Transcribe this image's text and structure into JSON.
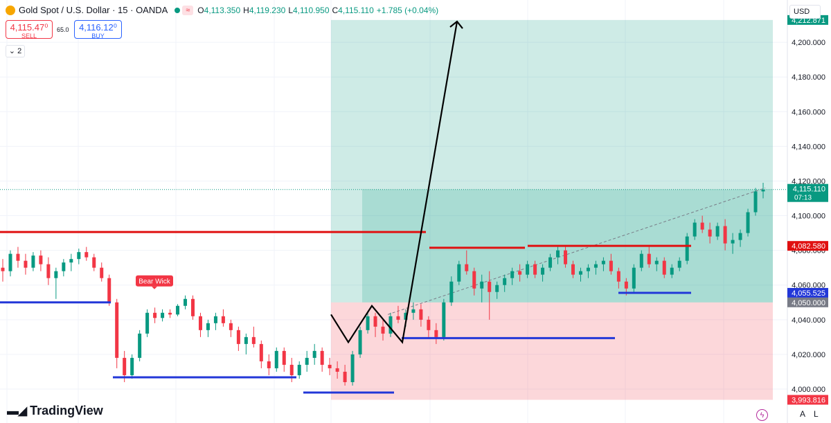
{
  "header": {
    "title": "Gold Spot / U.S. Dollar · 15 · OANDA",
    "open_key": "O",
    "open": "4,113.350",
    "high_key": "H",
    "high": "4,119.230",
    "low_key": "L",
    "low": "4,110.950",
    "close_key": "C",
    "close": "4,115.110",
    "change": "+1.785 (+0.04%)"
  },
  "trade": {
    "sell_price": "4,115.47⁰",
    "sell_label": "SELL",
    "spread": "65.0",
    "buy_price": "4,116.12⁰",
    "buy_label": "BUY"
  },
  "indicator_count": "2",
  "currency": "USD",
  "branding": "TradingView",
  "bottom_buttons": [
    "A",
    "L"
  ],
  "colors": {
    "up": "#089981",
    "down": "#f23645",
    "resistance": "#e01010",
    "support": "#2237d8",
    "profit_zone": "rgba(8,153,129,0.20)",
    "loss_zone": "rgba(242,54,69,0.20)"
  },
  "chart_data": {
    "type": "candlestick",
    "symbol": "Gold Spot / U.S. Dollar",
    "interval": "15",
    "ylim": [
      3990,
      4215
    ],
    "y_ticks": [
      "4,000.000",
      "4,020.000",
      "4,040.000",
      "4,060.000",
      "4,080.000",
      "4,100.000",
      "4,120.000",
      "4,140.000",
      "4,160.000",
      "4,180.000",
      "4,200.000"
    ],
    "price_labels": [
      {
        "value": 4212.871,
        "text": "4,212.871",
        "color": "#089981"
      },
      {
        "value": 4115.11,
        "text": "4,115.110",
        "sub": "07:13",
        "color": "#089981"
      },
      {
        "value": 4082.58,
        "text": "4,082.580",
        "color": "#e01010"
      },
      {
        "value": 4055.525,
        "text": "4,055.525",
        "color": "#2237d8"
      },
      {
        "value": 4050.0,
        "text": "4,050.000",
        "color": "#787b86"
      },
      {
        "value": 3993.816,
        "text": "3,993.816",
        "color": "#f23645"
      }
    ],
    "candles": [
      [
        4070,
        4075,
        4062,
        4068
      ],
      [
        4068,
        4080,
        4065,
        4078
      ],
      [
        4078,
        4082,
        4070,
        4074
      ],
      [
        4074,
        4078,
        4066,
        4070
      ],
      [
        4070,
        4079,
        4068,
        4077
      ],
      [
        4077,
        4080,
        4068,
        4072
      ],
      [
        4072,
        4076,
        4060,
        4064
      ],
      [
        4064,
        4070,
        4052,
        4068
      ],
      [
        4068,
        4075,
        4065,
        4073
      ],
      [
        4073,
        4078,
        4068,
        4075
      ],
      [
        4075,
        4081,
        4072,
        4079
      ],
      [
        4079,
        4082,
        4074,
        4076
      ],
      [
        4076,
        4078,
        4068,
        4070
      ],
      [
        4070,
        4073,
        4062,
        4064
      ],
      [
        4064,
        4066,
        4048,
        4050
      ],
      [
        4050,
        4052,
        4012,
        4018
      ],
      [
        4018,
        4022,
        4004,
        4008
      ],
      [
        4008,
        4020,
        4006,
        4018
      ],
      [
        4018,
        4034,
        4016,
        4032
      ],
      [
        4032,
        4046,
        4030,
        4044
      ],
      [
        4044,
        4047,
        4038,
        4041
      ],
      [
        4041,
        4046,
        4039,
        4044
      ],
      [
        4044,
        4046,
        4041,
        4043
      ],
      [
        4043,
        4049,
        4042,
        4048
      ],
      [
        4048,
        4054,
        4046,
        4052
      ],
      [
        4052,
        4054,
        4040,
        4042
      ],
      [
        4042,
        4044,
        4030,
        4034
      ],
      [
        4034,
        4040,
        4030,
        4038
      ],
      [
        4038,
        4044,
        4034,
        4042
      ],
      [
        4042,
        4046,
        4036,
        4038
      ],
      [
        4038,
        4040,
        4030,
        4034
      ],
      [
        4034,
        4036,
        4022,
        4026
      ],
      [
        4026,
        4032,
        4020,
        4030
      ],
      [
        4030,
        4036,
        4024,
        4026
      ],
      [
        4026,
        4028,
        4012,
        4016
      ],
      [
        4016,
        4020,
        4008,
        4012
      ],
      [
        4012,
        4024,
        4010,
        4022
      ],
      [
        4022,
        4024,
        4010,
        4014
      ],
      [
        4014,
        4018,
        4004,
        4008
      ],
      [
        4008,
        4016,
        4006,
        4014
      ],
      [
        4014,
        4022,
        4010,
        4018
      ],
      [
        4018,
        4026,
        4014,
        4022
      ],
      [
        4022,
        4024,
        4010,
        4014
      ],
      [
        4014,
        4018,
        4008,
        4012
      ],
      [
        4012,
        4016,
        4006,
        4010
      ],
      [
        4010,
        4014,
        4002,
        4004
      ],
      [
        4004,
        4022,
        4002,
        4020
      ],
      [
        4020,
        4036,
        4018,
        4034
      ],
      [
        4034,
        4045,
        4032,
        4042
      ],
      [
        4042,
        4044,
        4030,
        4036
      ],
      [
        4036,
        4040,
        4028,
        4032
      ],
      [
        4032,
        4044,
        4030,
        4042
      ],
      [
        4042,
        4048,
        4038,
        4040
      ],
      [
        4040,
        4046,
        4036,
        4044
      ],
      [
        4044,
        4050,
        4040,
        4046
      ],
      [
        4046,
        4049,
        4036,
        4040
      ],
      [
        4040,
        4042,
        4030,
        4034
      ],
      [
        4034,
        4038,
        4026,
        4030
      ],
      [
        4030,
        4052,
        4028,
        4050
      ],
      [
        4050,
        4065,
        4048,
        4062
      ],
      [
        4062,
        4074,
        4060,
        4072
      ],
      [
        4072,
        4080,
        4066,
        4068
      ],
      [
        4068,
        4070,
        4054,
        4058
      ],
      [
        4058,
        4066,
        4050,
        4062
      ],
      [
        4062,
        4068,
        4040,
        4056
      ],
      [
        4056,
        4062,
        4052,
        4060
      ],
      [
        4060,
        4066,
        4056,
        4064
      ],
      [
        4064,
        4070,
        4060,
        4068
      ],
      [
        4068,
        4072,
        4062,
        4066
      ],
      [
        4066,
        4074,
        4064,
        4072
      ],
      [
        4072,
        4074,
        4064,
        4066
      ],
      [
        4066,
        4072,
        4062,
        4070
      ],
      [
        4070,
        4078,
        4068,
        4076
      ],
      [
        4076,
        4082,
        4072,
        4080
      ],
      [
        4080,
        4082,
        4070,
        4072
      ],
      [
        4072,
        4074,
        4064,
        4066
      ],
      [
        4066,
        4070,
        4062,
        4068
      ],
      [
        4068,
        4072,
        4064,
        4070
      ],
      [
        4070,
        4074,
        4066,
        4072
      ],
      [
        4072,
        4076,
        4068,
        4074
      ],
      [
        4074,
        4078,
        4066,
        4068
      ],
      [
        4068,
        4070,
        4058,
        4062
      ],
      [
        4062,
        4064,
        4054,
        4058
      ],
      [
        4058,
        4072,
        4056,
        4070
      ],
      [
        4070,
        4080,
        4068,
        4078
      ],
      [
        4078,
        4082,
        4070,
        4072
      ],
      [
        4072,
        4076,
        4068,
        4074
      ],
      [
        4074,
        4076,
        4064,
        4066
      ],
      [
        4066,
        4072,
        4064,
        4070
      ],
      [
        4070,
        4076,
        4068,
        4074
      ],
      [
        4074,
        4090,
        4072,
        4088
      ],
      [
        4088,
        4098,
        4086,
        4096
      ],
      [
        4096,
        4100,
        4090,
        4092
      ],
      [
        4092,
        4096,
        4084,
        4088
      ],
      [
        4088,
        4096,
        4086,
        4094
      ],
      [
        4094,
        4098,
        4080,
        4084
      ],
      [
        4084,
        4090,
        4078,
        4086
      ],
      [
        4086,
        4092,
        4082,
        4090
      ],
      [
        4090,
        4104,
        4088,
        4102
      ],
      [
        4102,
        4116,
        4100,
        4114
      ],
      [
        4114,
        4119,
        4110,
        4115
      ]
    ],
    "zones": {
      "profit": {
        "top": 4212.871,
        "bottom": 4050.0
      },
      "loss": {
        "top": 4050.0,
        "bottom": 3993.816
      },
      "open_trade_shade": {
        "top": 4115.11,
        "bottom": 4050.0
      }
    },
    "resistance_levels": [
      {
        "value": 4090.6
      },
      {
        "value": 4081.5
      },
      {
        "value": 4082.58
      }
    ],
    "support_levels": [
      {
        "value": 4050.0
      },
      {
        "value": 4006.8
      },
      {
        "value": 3998.0
      },
      {
        "value": 4029.4
      },
      {
        "value": 4055.525
      }
    ],
    "annotations": [
      {
        "text": "Bear Wick",
        "color": "#f23645"
      }
    ],
    "projection_path": [
      4043,
      4027,
      4048,
      4027,
      4212
    ]
  }
}
